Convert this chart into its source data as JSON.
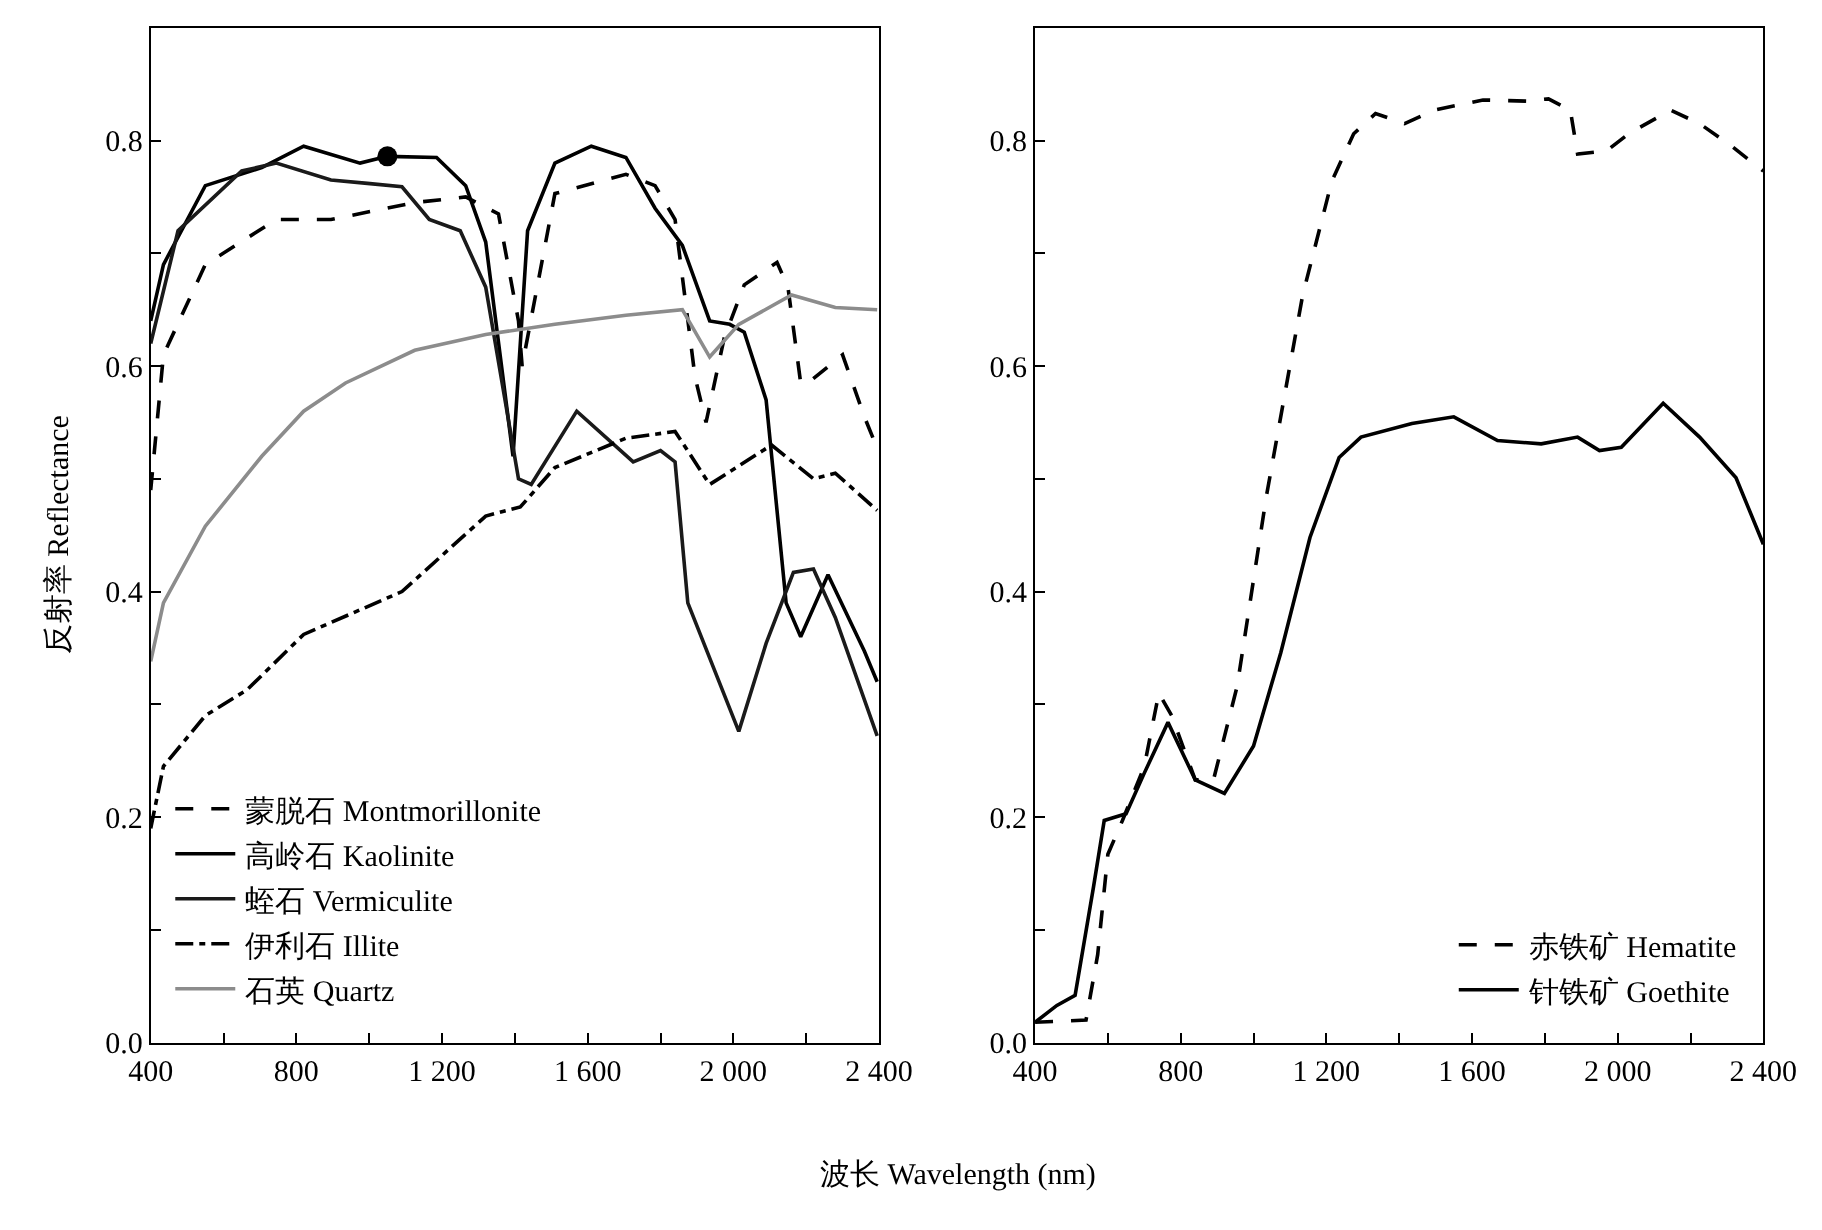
{
  "chart_data": [
    {
      "type": "line",
      "xlabel": "波长 Wavelength (nm)",
      "ylabel": "反射率 Reflectance",
      "xlim": [
        400,
        2400
      ],
      "ylim": [
        0,
        0.9
      ],
      "legend": "bottom left",
      "xticks": [
        {
          "value": 400,
          "label": "400"
        },
        {
          "value": 600,
          "label": null
        },
        {
          "value": 800,
          "label": "800"
        },
        {
          "value": 1000,
          "label": null
        },
        {
          "value": 1200,
          "label": "1 200"
        },
        {
          "value": 1400,
          "label": null
        },
        {
          "value": 1600,
          "label": "1 600"
        },
        {
          "value": 1800,
          "label": null
        },
        {
          "value": 2000,
          "label": "2 000"
        },
        {
          "value": 2200,
          "label": null
        },
        {
          "value": 2400,
          "label": "2 400"
        }
      ],
      "yticks": [
        {
          "value": 0,
          "label": "0.0"
        },
        {
          "value": 0.1,
          "label": null
        },
        {
          "value": 0.2,
          "label": "0.2"
        },
        {
          "value": 0.3,
          "label": null
        },
        {
          "value": 0.4,
          "label": "0.4"
        },
        {
          "value": 0.5,
          "label": null
        },
        {
          "value": 0.6,
          "label": "0.6"
        },
        {
          "value": 0.7,
          "label": null
        },
        {
          "value": 0.8,
          "label": "0.8"
        }
      ],
      "series": [
        {
          "name": "蒙脱石 Montmorillonite",
          "color": "#000000",
          "line_style": "dashed",
          "x": [
            400,
            435,
            550,
            745,
            895,
            1125,
            1265,
            1355,
            1410,
            1420,
            1510,
            1705,
            1785,
            1840,
            1895,
            1925,
            1975,
            2030,
            2120,
            2150,
            2185,
            2205,
            2300,
            2360,
            2395
          ],
          "values": [
            0.49,
            0.61,
            0.69,
            0.73,
            0.73,
            0.745,
            0.75,
            0.735,
            0.64,
            0.6,
            0.753,
            0.77,
            0.76,
            0.73,
            0.59,
            0.55,
            0.625,
            0.672,
            0.692,
            0.67,
            0.585,
            0.585,
            0.61,
            0.555,
            0.527
          ]
        },
        {
          "name": "高岭石 Kaolinite",
          "color": "#000000",
          "line_style": "solid",
          "x": [
            400,
            435,
            550,
            705,
            820,
            975,
            1050,
            1185,
            1265,
            1320,
            1395,
            1435,
            1510,
            1610,
            1705,
            1785,
            1860,
            1935,
            1990,
            2030,
            2090,
            2145,
            2185,
            2260,
            2360,
            2395
          ],
          "values": [
            0.64,
            0.69,
            0.76,
            0.776,
            0.795,
            0.78,
            0.786,
            0.785,
            0.76,
            0.71,
            0.52,
            0.72,
            0.78,
            0.795,
            0.785,
            0.74,
            0.707,
            0.64,
            0.637,
            0.63,
            0.57,
            0.39,
            0.36,
            0.415,
            0.347,
            0.32
          ]
        },
        {
          "name": "蛭石 Vermiculite",
          "color": "#1a1a1a",
          "line_style": "solid",
          "x": [
            400,
            475,
            650,
            745,
            895,
            995,
            1090,
            1165,
            1250,
            1320,
            1410,
            1445,
            1570,
            1725,
            1800,
            1840,
            1875,
            2015,
            2090,
            2165,
            2220,
            2280,
            2395
          ],
          "values": [
            0.62,
            0.72,
            0.773,
            0.78,
            0.765,
            0.762,
            0.759,
            0.73,
            0.72,
            0.67,
            0.5,
            0.495,
            0.56,
            0.515,
            0.525,
            0.515,
            0.39,
            0.276,
            0.354,
            0.417,
            0.42,
            0.377,
            0.272
          ]
        },
        {
          "name": "伊利石 Illite",
          "color": "#000000",
          "line_style": "dashdot",
          "x": [
            400,
            435,
            550,
            665,
            820,
            1090,
            1320,
            1415,
            1510,
            1705,
            1840,
            1935,
            2105,
            2220,
            2280,
            2395
          ],
          "values": [
            0.19,
            0.245,
            0.29,
            0.313,
            0.362,
            0.4,
            0.467,
            0.475,
            0.51,
            0.536,
            0.542,
            0.495,
            0.53,
            0.5,
            0.505,
            0.472
          ]
        },
        {
          "name": "石英 Quartz",
          "color": "#8c8c8c",
          "line_style": "solid",
          "x": [
            400,
            435,
            550,
            705,
            820,
            935,
            1125,
            1320,
            1510,
            1705,
            1860,
            1935,
            2015,
            2160,
            2280,
            2395
          ],
          "values": [
            0.338,
            0.39,
            0.458,
            0.52,
            0.56,
            0.585,
            0.614,
            0.628,
            0.637,
            0.645,
            0.65,
            0.608,
            0.637,
            0.663,
            0.652,
            0.65
          ]
        },
        {
          "type": "scatter",
          "marker": "circle",
          "color": "#000000",
          "x": [
            1050
          ],
          "values": [
            0.786
          ]
        }
      ]
    },
    {
      "type": "line",
      "xlim": [
        400,
        2400
      ],
      "ylim": [
        0,
        0.9
      ],
      "legend": "bottom right",
      "xticks": [
        {
          "value": 400,
          "label": "400"
        },
        {
          "value": 600,
          "label": null
        },
        {
          "value": 800,
          "label": "800"
        },
        {
          "value": 1000,
          "label": null
        },
        {
          "value": 1200,
          "label": "1 200"
        },
        {
          "value": 1400,
          "label": null
        },
        {
          "value": 1600,
          "label": "1 600"
        },
        {
          "value": 1800,
          "label": null
        },
        {
          "value": 2000,
          "label": "2 000"
        },
        {
          "value": 2200,
          "label": null
        },
        {
          "value": 2400,
          "label": "2 400"
        }
      ],
      "yticks": [
        {
          "value": 0,
          "label": "0.0"
        },
        {
          "value": 0.1,
          "label": null
        },
        {
          "value": 0.2,
          "label": "0.2"
        },
        {
          "value": 0.3,
          "label": null
        },
        {
          "value": 0.4,
          "label": "0.4"
        },
        {
          "value": 0.5,
          "label": null
        },
        {
          "value": 0.6,
          "label": "0.6"
        },
        {
          "value": 0.7,
          "label": null
        },
        {
          "value": 0.8,
          "label": "0.8"
        }
      ],
      "series": [
        {
          "name": "赤铁矿 Hematite",
          "color": "#000000",
          "line_style": "dashed",
          "x": [
            400,
            540,
            572,
            600,
            640,
            700,
            740,
            775,
            840,
            890,
            955,
            1035,
            1135,
            1215,
            1275,
            1335,
            1415,
            1495,
            1630,
            1750,
            1810,
            1870,
            1890,
            1970,
            2030,
            2145,
            2225,
            2305,
            2400
          ],
          "values": [
            0.018,
            0.02,
            0.078,
            0.167,
            0.197,
            0.245,
            0.31,
            0.29,
            0.233,
            0.233,
            0.316,
            0.484,
            0.663,
            0.764,
            0.806,
            0.824,
            0.815,
            0.827,
            0.836,
            0.835,
            0.837,
            0.827,
            0.788,
            0.791,
            0.806,
            0.827,
            0.815,
            0.797,
            0.773
          ]
        },
        {
          "name": "针铁矿 Goethite",
          "color": "#000000",
          "line_style": "solid",
          "x": [
            400,
            460,
            510,
            560,
            590,
            650,
            700,
            765,
            840,
            920,
            1000,
            1075,
            1155,
            1235,
            1295,
            1435,
            1550,
            1670,
            1790,
            1890,
            1950,
            2010,
            2125,
            2225,
            2325,
            2400
          ],
          "values": [
            0.018,
            0.033,
            0.042,
            0.137,
            0.197,
            0.203,
            0.239,
            0.284,
            0.233,
            0.221,
            0.263,
            0.346,
            0.448,
            0.519,
            0.537,
            0.549,
            0.555,
            0.534,
            0.531,
            0.537,
            0.525,
            0.528,
            0.567,
            0.537,
            0.501,
            0.442
          ]
        }
      ]
    }
  ]
}
